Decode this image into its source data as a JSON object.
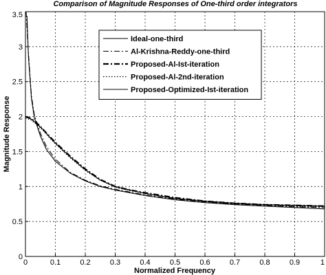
{
  "chart_data": {
    "type": "line",
    "title": "Comparison of Magnitude Responses of One-third order integrators",
    "xlabel": "Normalized Frequency",
    "ylabel": "Magnitude Response",
    "xlim": [
      0,
      1
    ],
    "ylim": [
      0,
      3.5
    ],
    "xticks": [
      "0",
      "0.1",
      "0.2",
      "0.3",
      "0.4",
      "0.5",
      "0.6",
      "0.7",
      "0.8",
      "0.9",
      "1"
    ],
    "yticks": [
      "0",
      "0.5",
      "1",
      "1.5",
      "2",
      "2.5",
      "3",
      "3.5"
    ],
    "grid": true,
    "legend_position": "top-right",
    "series": [
      {
        "name": "Ideal-one-third",
        "style": "solid",
        "x": [
          0.005,
          0.01,
          0.02,
          0.03,
          0.05,
          0.07,
          0.1,
          0.15,
          0.2,
          0.25,
          0.3,
          0.35,
          0.4,
          0.5,
          0.6,
          0.7,
          0.8,
          0.9,
          1.0
        ],
        "y": [
          3.44,
          2.85,
          2.26,
          1.98,
          1.72,
          1.53,
          1.36,
          1.19,
          1.08,
          1.0,
          0.95,
          0.91,
          0.87,
          0.81,
          0.77,
          0.74,
          0.72,
          0.7,
          0.68
        ]
      },
      {
        "name": "Al-Krishna-Reddy-one-third",
        "style": "dashdot",
        "x": [
          0.002,
          0.01,
          0.02,
          0.03,
          0.05,
          0.07,
          0.1,
          0.15,
          0.2,
          0.25,
          0.3,
          0.35,
          0.4,
          0.5,
          0.6,
          0.7,
          0.8,
          0.9,
          1.0
        ],
        "y": [
          3.5,
          2.9,
          2.3,
          2.02,
          1.76,
          1.57,
          1.39,
          1.2,
          1.09,
          1.01,
          0.96,
          0.92,
          0.88,
          0.82,
          0.78,
          0.75,
          0.73,
          0.71,
          0.7
        ]
      },
      {
        "name": "Proposed-Al-Ist-iteration",
        "style": "dashdot-bold",
        "x": [
          0.0,
          0.02,
          0.04,
          0.06,
          0.08,
          0.1,
          0.15,
          0.2,
          0.25,
          0.3,
          0.35,
          0.4,
          0.5,
          0.6,
          0.7,
          0.8,
          0.9,
          1.0
        ],
        "y": [
          2.0,
          1.97,
          1.9,
          1.81,
          1.72,
          1.63,
          1.43,
          1.25,
          1.1,
          1.0,
          0.95,
          0.91,
          0.84,
          0.79,
          0.76,
          0.74,
          0.73,
          0.72
        ]
      },
      {
        "name": "Proposed-Al-2nd-iteration",
        "style": "dotted",
        "x": [
          0.0,
          0.02,
          0.04,
          0.06,
          0.08,
          0.1,
          0.15,
          0.2,
          0.25,
          0.3,
          0.35,
          0.4,
          0.5,
          0.6,
          0.7,
          0.8,
          0.9,
          1.0
        ],
        "y": [
          1.98,
          1.95,
          1.88,
          1.8,
          1.7,
          1.61,
          1.41,
          1.23,
          1.09,
          0.99,
          0.94,
          0.9,
          0.83,
          0.79,
          0.76,
          0.74,
          0.72,
          0.71
        ]
      },
      {
        "name": "Proposed-Optimized-Ist-iteration",
        "style": "solid",
        "x": [
          0.0,
          0.02,
          0.04,
          0.06,
          0.08,
          0.1,
          0.15,
          0.2,
          0.25,
          0.3,
          0.35,
          0.4,
          0.5,
          0.6,
          0.7,
          0.8,
          0.9,
          1.0
        ],
        "y": [
          2.0,
          1.96,
          1.89,
          1.81,
          1.71,
          1.62,
          1.42,
          1.24,
          1.09,
          1.0,
          0.95,
          0.9,
          0.83,
          0.79,
          0.76,
          0.74,
          0.73,
          0.72
        ]
      }
    ]
  }
}
